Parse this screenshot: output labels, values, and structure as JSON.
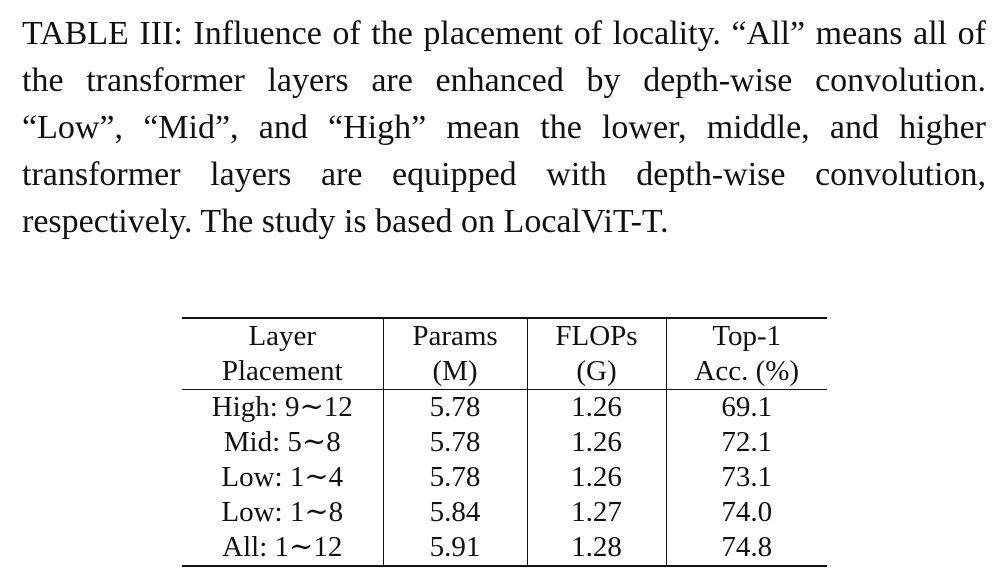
{
  "caption": {
    "label": "TABLE III:",
    "text": "Influence of the placement of locality. “All” means all of the transformer layers are enhanced by depth-wise convolution. “Low”, “Mid”, and “High” mean the lower, middle, and higher transformer layers are equipped with depth-wise convolution, respectively. The study is based on LocalViT-T."
  },
  "table": {
    "header": [
      [
        "Layer",
        "Placement"
      ],
      [
        "Params",
        "(M)"
      ],
      [
        "FLOPs",
        "(G)"
      ],
      [
        "Top-1",
        "Acc. (%)"
      ]
    ],
    "rows": [
      [
        "High: 9∼12",
        "5.78",
        "1.26",
        "69.1"
      ],
      [
        "Mid: 5∼8",
        "5.78",
        "1.26",
        "72.1"
      ],
      [
        "Low: 1∼4",
        "5.78",
        "1.26",
        "73.1"
      ],
      [
        "Low: 1∼8",
        "5.84",
        "1.27",
        "74.0"
      ],
      [
        "All: 1∼12",
        "5.91",
        "1.28",
        "74.8"
      ]
    ]
  }
}
